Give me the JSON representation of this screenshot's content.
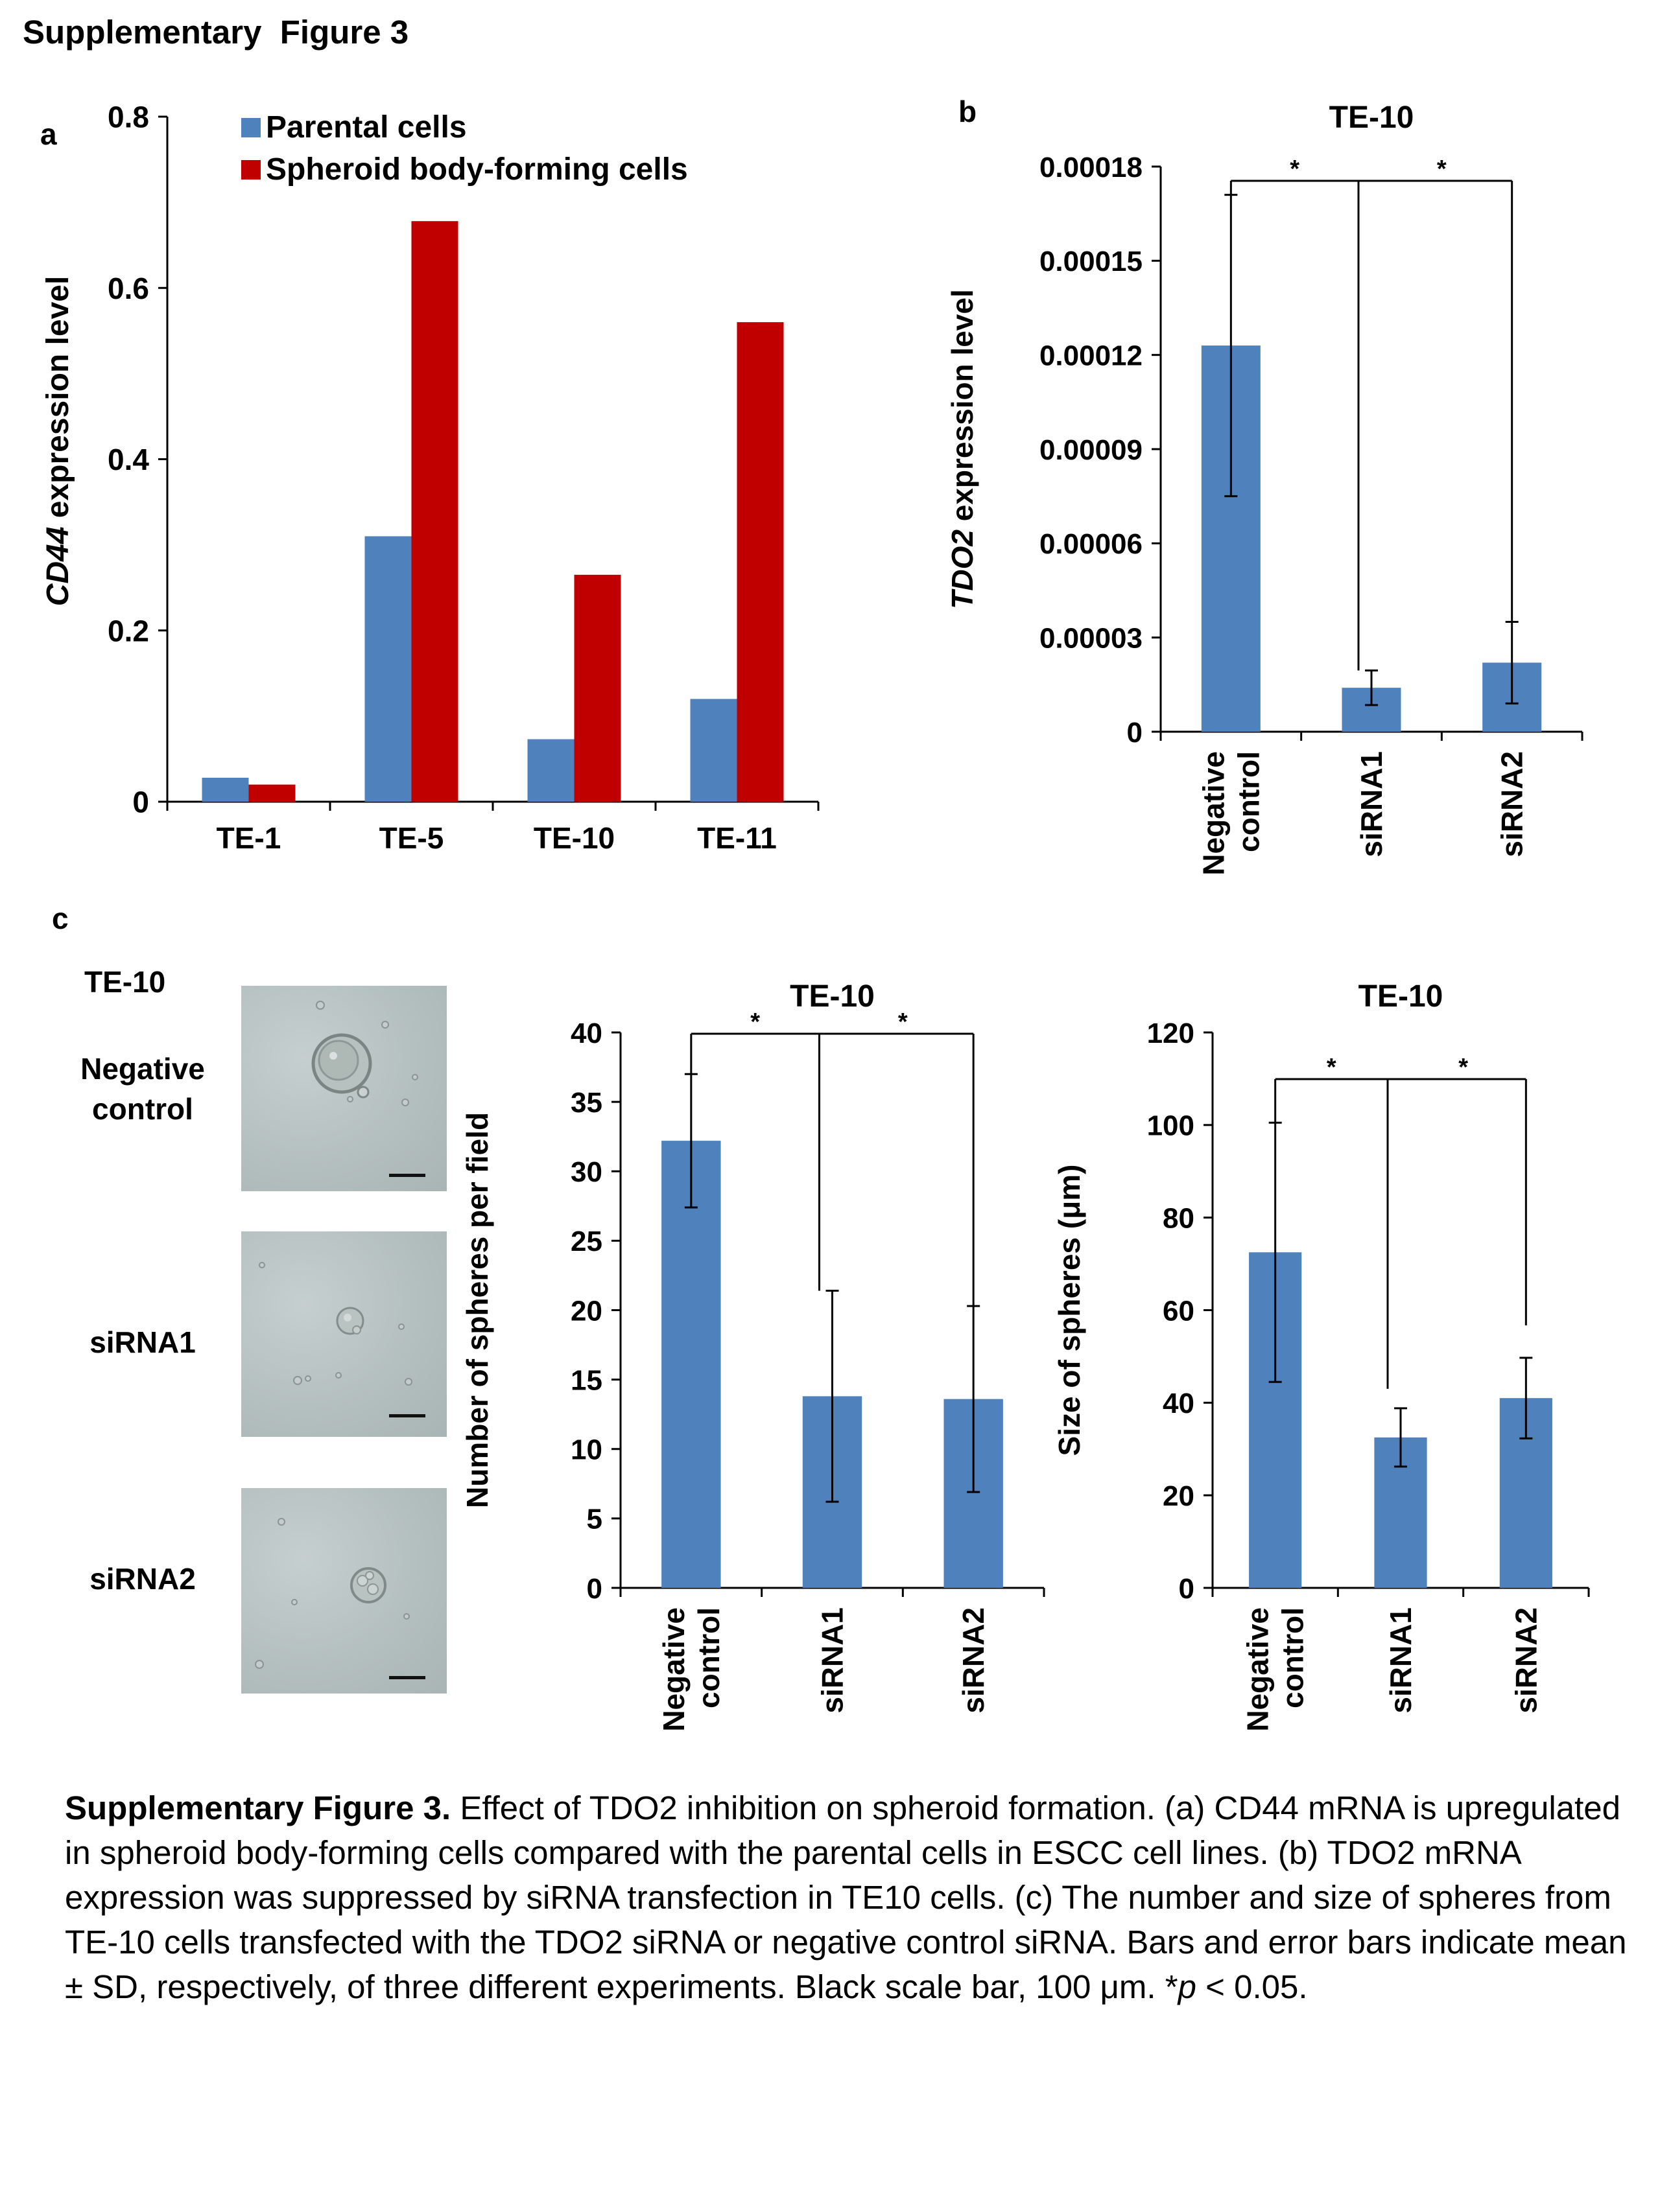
{
  "page_title": "Supplementary  Figure 3",
  "panels": {
    "a": {
      "letter": "a"
    },
    "b": {
      "letter": "b",
      "title": "TE-10"
    },
    "c": {
      "letter": "c",
      "cell_line_label": "TE-10",
      "image_rows": [
        "Negative\ncontrol",
        "siRNA1",
        "siRNA2"
      ],
      "number_chart_title": "TE-10",
      "size_chart_title": "TE-10"
    }
  },
  "chart_data": [
    {
      "id": "a",
      "type": "bar",
      "categories": [
        "TE-1",
        "TE-5",
        "TE-10",
        "TE-11"
      ],
      "series": [
        {
          "name": "Parental cells",
          "color": "#4f81bd",
          "values": [
            0.028,
            0.31,
            0.073,
            0.12
          ]
        },
        {
          "name": "Spheroid body-forming cells",
          "color": "#c00000",
          "values": [
            0.02,
            0.678,
            0.265,
            0.56
          ]
        }
      ],
      "ylabel_italic": "CD44",
      "ylabel_rest": " expression level",
      "ylim": [
        0,
        0.8
      ],
      "yticks": [
        "0",
        "0.2",
        "0.4",
        "0.6",
        "0.8"
      ],
      "legend": "top-left"
    },
    {
      "id": "b",
      "type": "bar",
      "title": "TE-10",
      "categories": [
        "Negative control",
        "siRNA1",
        "siRNA2"
      ],
      "values": [
        0.000123,
        1.4e-05,
        2.2e-05
      ],
      "errors": [
        4.8e-05,
        5.5e-06,
        1.3e-05
      ],
      "color": "#4f81bd",
      "ylabel_italic": "TDO2",
      "ylabel_rest": " expression level",
      "ylim": [
        0,
        0.00018
      ],
      "yticks": [
        "0",
        "0.00003",
        "0.00006",
        "0.00009",
        "0.00012",
        "0.00015",
        "0.00018"
      ],
      "significance": [
        "*",
        "*"
      ]
    },
    {
      "id": "c-number",
      "type": "bar",
      "title": "TE-10",
      "categories": [
        "Negative control",
        "siRNA1",
        "siRNA2"
      ],
      "values": [
        32.2,
        13.8,
        13.6
      ],
      "errors": [
        4.8,
        7.6,
        6.7
      ],
      "color": "#4f81bd",
      "ylabel": "Number of spheres per field",
      "ylim": [
        0,
        40
      ],
      "yticks": [
        "0",
        "5",
        "10",
        "15",
        "20",
        "25",
        "30",
        "35",
        "40"
      ],
      "significance": [
        "*",
        "*"
      ]
    },
    {
      "id": "c-size",
      "type": "bar",
      "title": "TE-10",
      "categories": [
        "Negative control",
        "siRNA1",
        "siRNA2"
      ],
      "values": [
        72.5,
        32.5,
        41
      ],
      "errors": [
        28,
        6.3,
        8.7
      ],
      "color": "#4f81bd",
      "ylabel": "Size of spheres (μm)",
      "ylim": [
        0,
        120
      ],
      "yticks": [
        "0",
        "20",
        "40",
        "60",
        "80",
        "100",
        "120"
      ],
      "significance": [
        "*",
        "*"
      ]
    }
  ],
  "category_labels": [
    [
      "Negative",
      "control"
    ],
    [
      "siRNA1"
    ],
    [
      "siRNA2"
    ]
  ],
  "caption": {
    "lead": "Supplementary Figure 3.",
    "body": " Effect of TDO2 inhibition on spheroid formation. (a) CD44 mRNA is upregulated in spheroid body-forming cells compared with the parental cells in ESCC cell lines. (b) TDO2 mRNA expression was suppressed by siRNA transfection in TE10 cells. (c) The number and size of spheres from TE-10 cells transfected with the TDO2 siRNA or negative control siRNA. Bars and error bars indicate mean ± SD, respectively, of three different experiments. Black scale bar, 100 μm. *",
    "p_italic": "p",
    "tail": " < 0.05."
  }
}
